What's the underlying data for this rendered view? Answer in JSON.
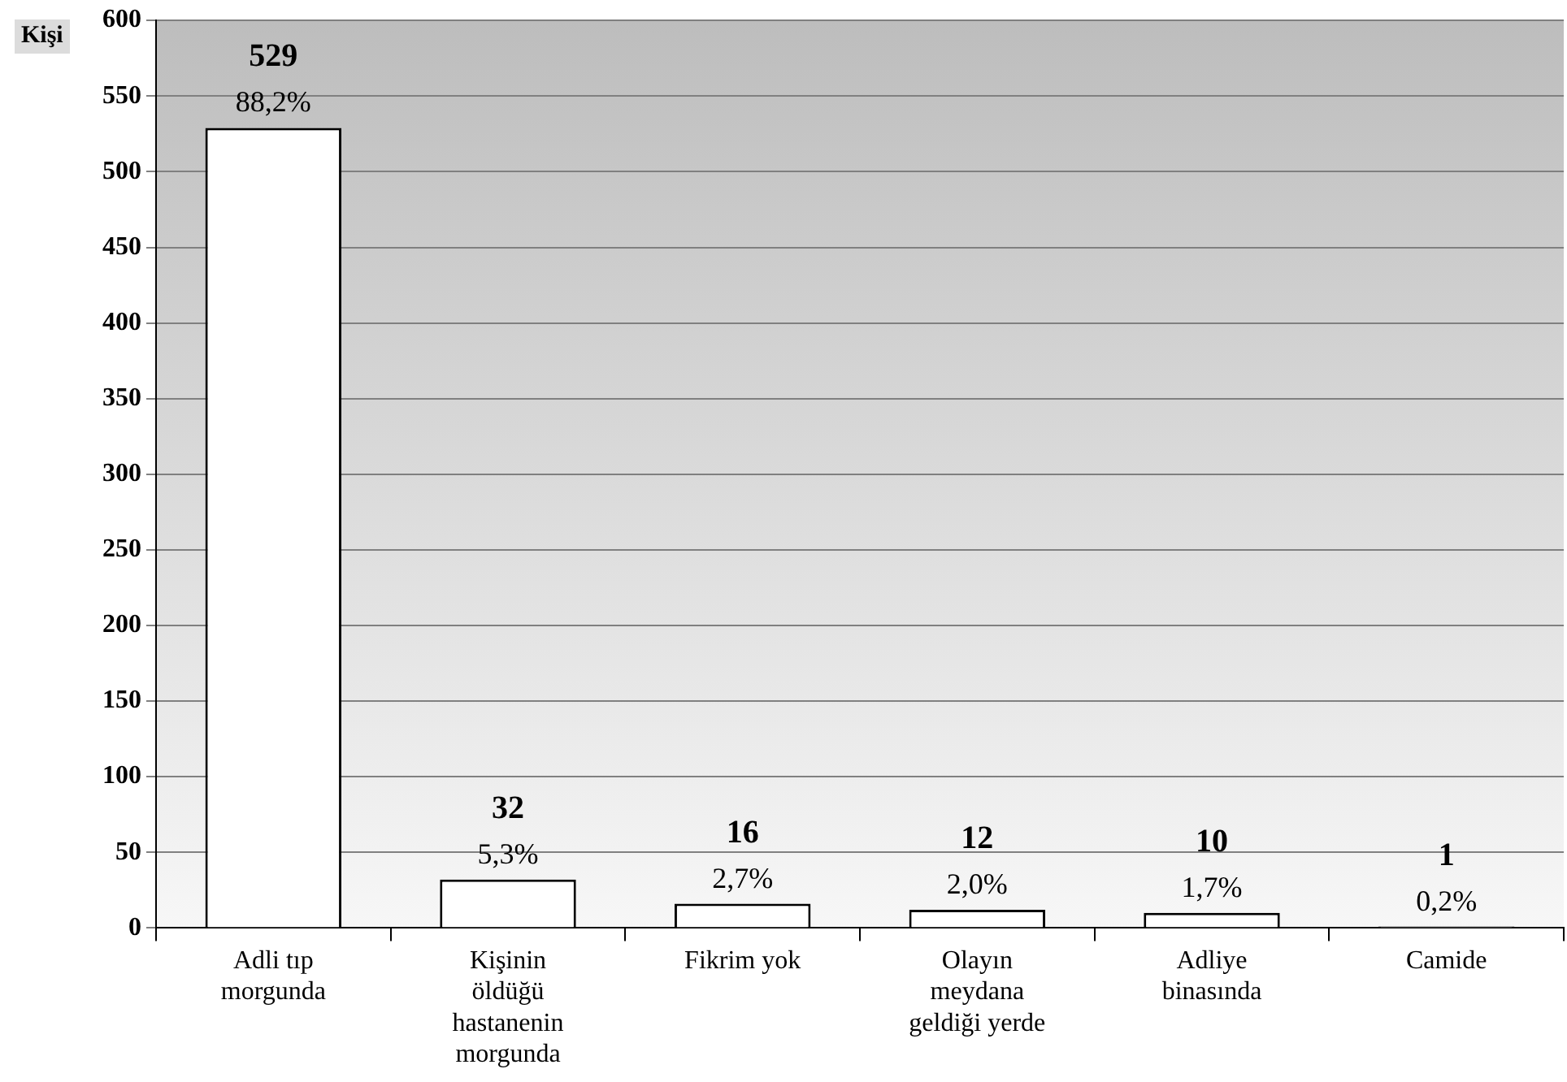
{
  "chart_data": {
    "type": "bar",
    "ylabel": "Kişi",
    "categories": [
      "Adli tıp morgunda",
      "Kişinin öldüğü hastanenin morgunda",
      "Fikrim yok",
      "Olayın meydana geldiği yerde",
      "Adliye binasında",
      "Camide"
    ],
    "values": [
      529,
      32,
      16,
      12,
      10,
      1
    ],
    "value_labels": [
      "529",
      "32",
      "16",
      "12",
      "10",
      "1"
    ],
    "annotations": [
      {
        "text": "88,2%",
        "x": "Adli tıp morgunda",
        "y": 529
      },
      {
        "text": "5,3%",
        "x": "Kişinin öldüğü hastanenin morgunda",
        "y": 32
      },
      {
        "text": "2,7%",
        "x": "Fikrim yok",
        "y": 16
      },
      {
        "text": "2,0%",
        "x": "Olayın meydana geldiği yerde",
        "y": 12
      },
      {
        "text": "1,7%",
        "x": "Adliye binasında",
        "y": 10
      },
      {
        "text": "0,2%",
        "x": "Camide",
        "y": 1
      }
    ],
    "color": "#ffffff",
    "ylim": [
      0,
      600
    ],
    "yticks": [
      0,
      50,
      100,
      150,
      200,
      250,
      300,
      350,
      400,
      450,
      500,
      550,
      600
    ],
    "grid": "y",
    "legend": false
  }
}
